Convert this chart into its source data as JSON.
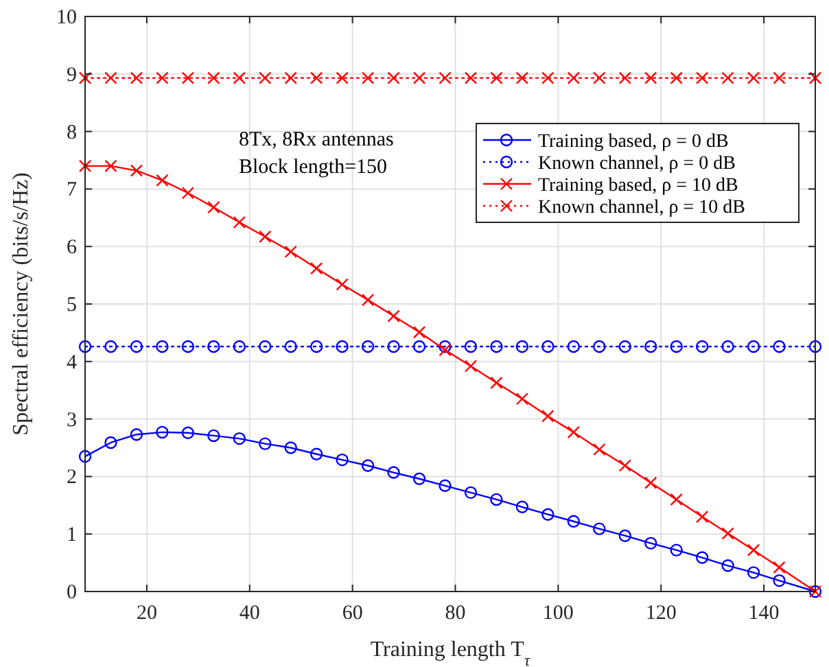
{
  "chart_data": {
    "type": "line",
    "xlabel": "Training length T$_{τ}$",
    "ylabel": "Spectral efficiency (bits/s/Hz)",
    "xlim": [
      8,
      150
    ],
    "xticks": [
      20,
      40,
      60,
      80,
      100,
      120,
      140
    ],
    "ylim": [
      0,
      10
    ],
    "yticks": [
      0,
      1,
      2,
      3,
      4,
      5,
      6,
      7,
      8,
      9,
      10
    ],
    "grid": true,
    "legend": "top right",
    "annotations": [
      "8Tx, 8Rx antennas",
      "Block length=150"
    ],
    "x": [
      8,
      13,
      18,
      23,
      28,
      33,
      38,
      43,
      48,
      53,
      58,
      63,
      68,
      73,
      78,
      83,
      88,
      93,
      98,
      103,
      108,
      113,
      118,
      123,
      128,
      133,
      138,
      143,
      150
    ],
    "series": [
      {
        "name": "Training based, ρ = 0 dB",
        "color": "#0000ff",
        "marker": "circle",
        "line_style": "solid",
        "values": [
          2.35,
          2.59,
          2.73,
          2.77,
          2.76,
          2.71,
          2.66,
          2.57,
          2.5,
          2.39,
          2.29,
          2.19,
          2.07,
          1.96,
          1.84,
          1.72,
          1.6,
          1.47,
          1.34,
          1.22,
          1.09,
          0.97,
          0.84,
          0.72,
          0.59,
          0.45,
          0.33,
          0.19,
          0
        ]
      },
      {
        "name": "Known channel, ρ = 0 dB",
        "color": "#0000ff",
        "marker": "circle",
        "line_style": "dotted",
        "values": [
          4.26,
          4.26,
          4.26,
          4.26,
          4.26,
          4.26,
          4.26,
          4.26,
          4.26,
          4.26,
          4.26,
          4.26,
          4.26,
          4.26,
          4.26,
          4.26,
          4.26,
          4.26,
          4.26,
          4.26,
          4.26,
          4.26,
          4.26,
          4.26,
          4.26,
          4.26,
          4.26,
          4.26,
          4.26
        ]
      },
      {
        "name": "Training based, ρ = 10 dB",
        "color": "#ff0000",
        "marker": "cross",
        "line_style": "solid",
        "values": [
          7.4,
          7.4,
          7.32,
          7.15,
          6.93,
          6.68,
          6.42,
          6.17,
          5.91,
          5.62,
          5.34,
          5.07,
          4.79,
          4.51,
          4.2,
          3.92,
          3.63,
          3.35,
          3.05,
          2.77,
          2.47,
          2.19,
          1.89,
          1.6,
          1.3,
          1.01,
          0.72,
          0.42,
          0
        ]
      },
      {
        "name": "Known channel, ρ = 10 dB",
        "color": "#ff0000",
        "marker": "cross",
        "line_style": "dotted",
        "values": [
          8.93,
          8.93,
          8.93,
          8.93,
          8.93,
          8.93,
          8.93,
          8.93,
          8.93,
          8.93,
          8.93,
          8.93,
          8.93,
          8.93,
          8.93,
          8.93,
          8.93,
          8.93,
          8.93,
          8.93,
          8.93,
          8.93,
          8.93,
          8.93,
          8.93,
          8.93,
          8.93,
          8.93,
          8.93
        ]
      }
    ]
  }
}
